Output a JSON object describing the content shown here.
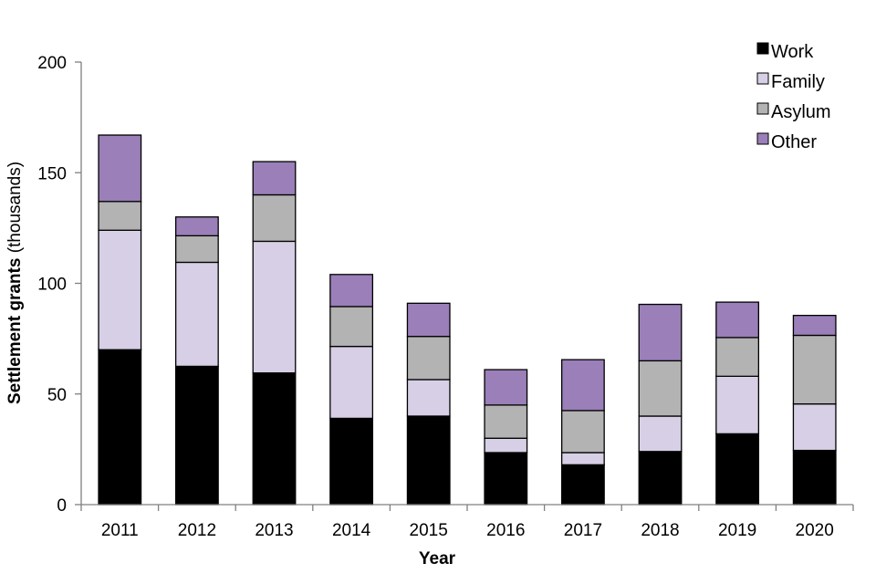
{
  "chart_data": {
    "type": "bar",
    "stacked": true,
    "title": "",
    "xlabel": "Year",
    "ylabel_bold": "Settlement grants",
    "ylabel_rest": " (thousands)",
    "ylim": [
      0,
      200
    ],
    "yticks": [
      0,
      50,
      100,
      150,
      200
    ],
    "grid": false,
    "legend_position": "top-right",
    "categories": [
      "2011",
      "2012",
      "2013",
      "2014",
      "2015",
      "2016",
      "2017",
      "2018",
      "2019",
      "2020"
    ],
    "series": [
      {
        "name": "Work",
        "color": "#000000",
        "values": [
          70,
          62.5,
          59.5,
          39,
          40,
          23.5,
          18,
          24,
          32,
          24.5
        ]
      },
      {
        "name": "Family",
        "color": "#d7cfe5",
        "values": [
          54,
          47,
          59.5,
          32.5,
          16.5,
          6.5,
          5.5,
          16,
          26,
          21
        ]
      },
      {
        "name": "Asylum",
        "color": "#b3b3b3",
        "values": [
          13,
          12,
          21,
          18,
          19.5,
          15,
          19,
          25,
          17.5,
          31
        ]
      },
      {
        "name": "Other",
        "color": "#9a7fb8",
        "values": [
          30,
          8.5,
          15,
          14.5,
          15,
          16,
          23,
          25.5,
          16,
          9
        ]
      }
    ]
  }
}
